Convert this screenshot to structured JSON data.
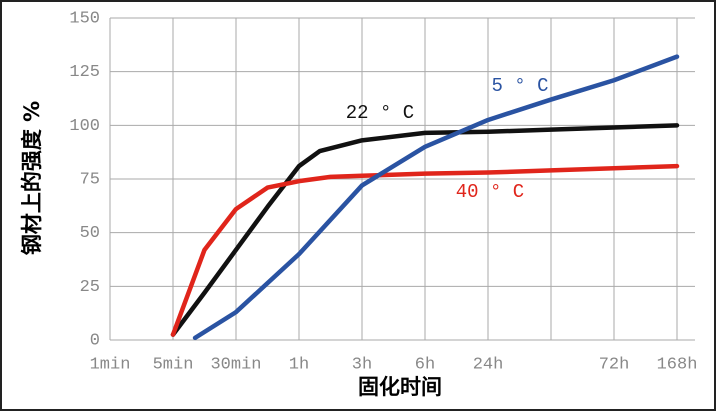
{
  "chart_data": {
    "type": "line",
    "y_label": "钢材上的强度 %",
    "x_label": "固化时间",
    "xlim": [
      0,
      9
    ],
    "xticks": [
      {
        "value": 0,
        "label": "1min"
      },
      {
        "value": 1,
        "label": "5min"
      },
      {
        "value": 2,
        "label": "30min"
      },
      {
        "value": 3,
        "label": "1h"
      },
      {
        "value": 4,
        "label": "3h"
      },
      {
        "value": 5,
        "label": "6h"
      },
      {
        "value": 6,
        "label": "24h"
      },
      {
        "value": 7,
        "label": null
      },
      {
        "value": 8,
        "label": "72h"
      },
      {
        "value": 9,
        "label": "168h"
      }
    ],
    "ylim": [
      0,
      150
    ],
    "yticks": [
      0,
      25,
      50,
      75,
      100,
      125,
      150
    ],
    "grid": true,
    "series": [
      {
        "name": "22 ° C",
        "color": "#111111",
        "x": [
          1,
          1.5,
          2,
          2.5,
          3,
          3.33,
          4,
          5,
          6,
          7,
          8,
          9
        ],
        "values": [
          2.5,
          22,
          42,
          62,
          81,
          88,
          93,
          96.5,
          97,
          98,
          99,
          100
        ]
      },
      {
        "name": "40 ° C",
        "color": "#e0251b",
        "x": [
          1,
          1.5,
          2,
          2.5,
          3,
          3.5,
          4,
          5,
          6,
          7,
          8,
          9
        ],
        "values": [
          2.5,
          42,
          61,
          71,
          74,
          76,
          76.5,
          77.5,
          78,
          79,
          80,
          81
        ]
      },
      {
        "name": "5 ° C",
        "color": "#2a53a2",
        "x": [
          1.35,
          2,
          3,
          4,
          5,
          6,
          7,
          8,
          9
        ],
        "values": [
          1,
          13,
          40,
          72,
          90,
          102.5,
          112,
          121,
          132
        ]
      }
    ]
  }
}
